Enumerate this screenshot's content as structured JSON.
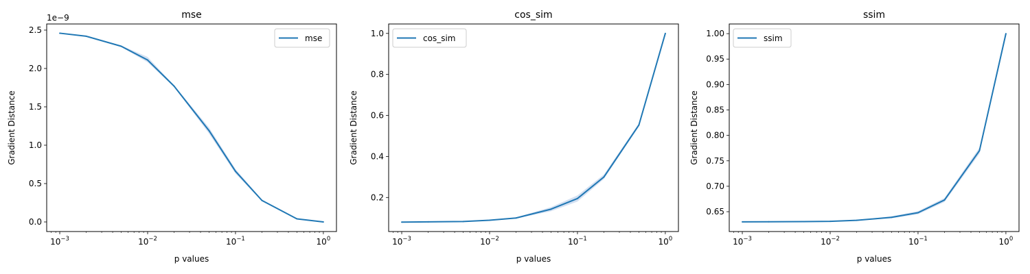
{
  "chart_data": [
    {
      "type": "line",
      "title": "mse",
      "xlabel": "p values",
      "ylabel": "Gradient Distance",
      "xscale": "log",
      "xlim": [
        0.00071,
        1.41
      ],
      "ylim": [
        -0.125,
        2.58
      ],
      "y_offset_label": "1e−9",
      "xticks": [
        0.001,
        0.01,
        0.1,
        1
      ],
      "xtick_labels": [
        {
          "base": "10",
          "exp": "−3"
        },
        {
          "base": "10",
          "exp": "−2"
        },
        {
          "base": "10",
          "exp": "−1"
        },
        {
          "base": "10",
          "exp": "0"
        }
      ],
      "yticks": [
        0.0,
        0.5,
        1.0,
        1.5,
        2.0,
        2.5
      ],
      "ytick_labels": [
        "0.0",
        "0.5",
        "1.0",
        "1.5",
        "2.0",
        "2.5"
      ],
      "legend": "top-right",
      "grid": false,
      "series": [
        {
          "name": "mse",
          "color": "#1f77b4",
          "band_color": "#aec7e8",
          "x": [
            0.001,
            0.002,
            0.005,
            0.01,
            0.02,
            0.05,
            0.1,
            0.2,
            0.5,
            1
          ],
          "y": [
            2.46,
            2.42,
            2.29,
            2.11,
            1.77,
            1.19,
            0.66,
            0.28,
            0.04,
            0.0
          ],
          "band_low": [
            2.455,
            2.415,
            2.28,
            2.08,
            1.76,
            1.15,
            0.63,
            0.27,
            0.035,
            0.0
          ],
          "band_high": [
            2.465,
            2.425,
            2.3,
            2.15,
            1.78,
            1.23,
            0.69,
            0.29,
            0.045,
            0.0
          ]
        }
      ]
    },
    {
      "type": "line",
      "title": "cos_sim",
      "xlabel": "p values",
      "ylabel": "Gradient Distance",
      "xscale": "log",
      "xlim": [
        0.00071,
        1.41
      ],
      "ylim": [
        0.034,
        1.046
      ],
      "xticks": [
        0.001,
        0.01,
        0.1,
        1
      ],
      "xtick_labels": [
        {
          "base": "10",
          "exp": "−3"
        },
        {
          "base": "10",
          "exp": "−2"
        },
        {
          "base": "10",
          "exp": "−1"
        },
        {
          "base": "10",
          "exp": "0"
        }
      ],
      "yticks": [
        0.2,
        0.4,
        0.6,
        0.8,
        1.0
      ],
      "ytick_labels": [
        "0.2",
        "0.4",
        "0.6",
        "0.8",
        "1.0"
      ],
      "legend": "top-left",
      "grid": false,
      "series": [
        {
          "name": "cos_sim",
          "color": "#1f77b4",
          "band_color": "#aec7e8",
          "x": [
            0.001,
            0.002,
            0.005,
            0.01,
            0.02,
            0.05,
            0.1,
            0.2,
            0.5,
            1
          ],
          "y": [
            0.08,
            0.081,
            0.083,
            0.089,
            0.1,
            0.143,
            0.195,
            0.3,
            0.553,
            1.0
          ],
          "band_low": [
            0.079,
            0.08,
            0.082,
            0.087,
            0.097,
            0.133,
            0.18,
            0.29,
            0.545,
            1.0
          ],
          "band_high": [
            0.081,
            0.082,
            0.084,
            0.091,
            0.103,
            0.153,
            0.21,
            0.312,
            0.561,
            1.0
          ]
        }
      ]
    },
    {
      "type": "line",
      "title": "ssim",
      "xlabel": "p values",
      "ylabel": "Gradient Distance",
      "xscale": "log",
      "xlim": [
        0.00071,
        1.41
      ],
      "ylim": [
        0.611,
        1.019
      ],
      "xticks": [
        0.001,
        0.01,
        0.1,
        1
      ],
      "xtick_labels": [
        {
          "base": "10",
          "exp": "−3"
        },
        {
          "base": "10",
          "exp": "−2"
        },
        {
          "base": "10",
          "exp": "−1"
        },
        {
          "base": "10",
          "exp": "0"
        }
      ],
      "yticks": [
        0.65,
        0.7,
        0.75,
        0.8,
        0.85,
        0.9,
        0.95,
        1.0
      ],
      "ytick_labels": [
        "0.65",
        "0.70",
        "0.75",
        "0.80",
        "0.85",
        "0.90",
        "0.95",
        "1.00"
      ],
      "legend": "top-left",
      "grid": false,
      "series": [
        {
          "name": "ssim",
          "color": "#1f77b4",
          "band_color": "#aec7e8",
          "x": [
            0.001,
            0.002,
            0.005,
            0.01,
            0.02,
            0.05,
            0.1,
            0.2,
            0.5,
            1
          ],
          "y": [
            0.63,
            0.6302,
            0.6306,
            0.631,
            0.633,
            0.639,
            0.648,
            0.673,
            0.77,
            1.0
          ],
          "band_low": [
            0.6298,
            0.63,
            0.6303,
            0.6307,
            0.6325,
            0.637,
            0.645,
            0.669,
            0.764,
            1.0
          ],
          "band_high": [
            0.6302,
            0.6304,
            0.6309,
            0.6313,
            0.6335,
            0.641,
            0.651,
            0.677,
            0.776,
            1.0
          ]
        }
      ]
    }
  ]
}
